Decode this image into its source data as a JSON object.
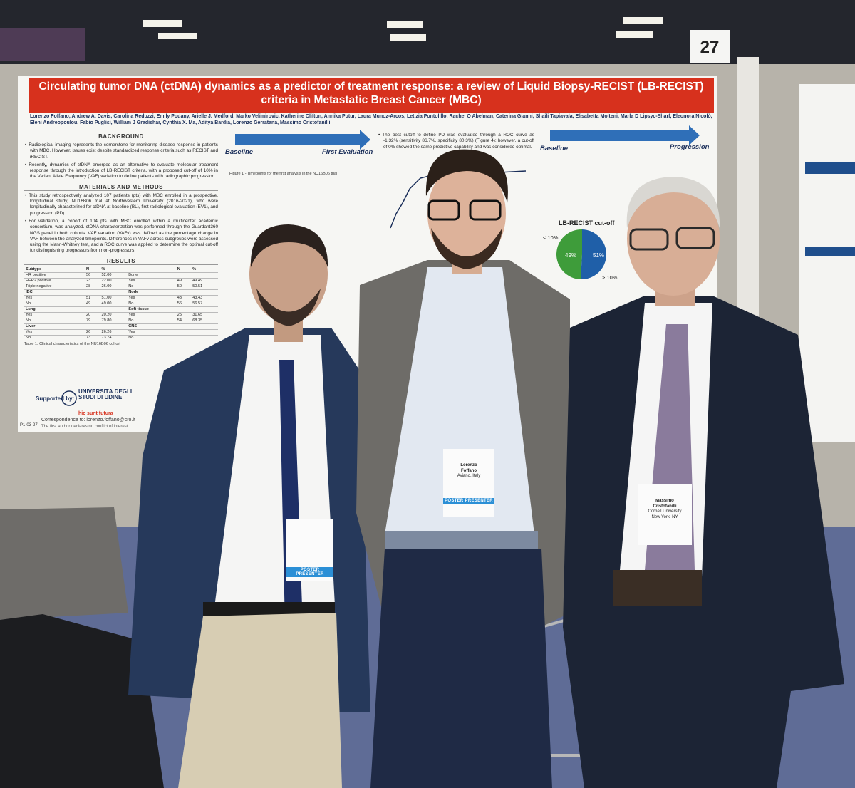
{
  "booth_number": "27",
  "poster": {
    "title": "Circulating tumor DNA (ctDNA) dynamics as a predictor of treatment response: a review of Liquid Biopsy-RECIST (LB-RECIST) criteria in Metastatic Breast Cancer (MBC)",
    "authors": "Lorenzo Foffano, Andrew A. Davis, Carolina Reduzzi, Emily Podany, Arielle J. Medford, Marko Velimirovic, Katherine Clifton, Annika Putur, Laura Munoz-Arcos, Letizia Pontolillo, Rachel O Abelman, Caterina Gianni, Shaili Tapiavala, Elisabetta Molteni, Marla D Lipsyc-Sharf, Eleonora Nicolò, Eleni Andreopoulou, Fabio Puglisi, William J Gradishar, Cynthia X. Ma, Aditya Bardia, Lorenzo Gerratana, Massimo Cristofanilli",
    "background": {
      "heading": "BACKGROUND",
      "bullets": [
        "Radiological imaging represents the cornerstone for monitoring disease response in patients with MBC. However, issues exist despite standardized response criteria such as RECIST and iRECIST.",
        "Recently, dynamics of ctDNA emerged as an alternative to evaluate molecular treatment response through the introduction of LB-RECIST criteria, with a proposed cut-off of 10% in the Variant Allele Frequency (VAF) variation to define patients with radiographic progression."
      ]
    },
    "methods": {
      "heading": "MATERIALS AND METHODS",
      "bullets": [
        "This study retrospectively analyzed 107 patients (pts) with MBC enrolled in a prospective, longitudinal study, NU16B06 trial at Northwestern University (2016-2021), who were longitudinally characterized for ctDNA at baseline (BL), first radiological evaluation (EV1), and progression (PD).",
        "For validation, a cohort of 104 pts with MBC enrolled within a multicenter academic consortium, was analyzed. ctDNA characterization was performed through the Guardant360 NGS panel in both cohorts. VAF variation (VAFv) was defined as the percentage change in VAF between the analyzed timepoints. Differences in VAFv across subgroups were assessed using the Mann-Whitney test, and a ROC curve was applied to determine the optimal cut-off for distinguishing progressors from non-progressors."
      ]
    },
    "results": {
      "heading": "RESULTS",
      "table": {
        "rows": [
          [
            "Subtype",
            "N",
            "%",
            null,
            "N",
            "%"
          ],
          [
            "HR positive",
            "56",
            "52.00",
            "Bone",
            null,
            null
          ],
          [
            "HER2 positive",
            "23",
            "22.00",
            "Yes",
            "49",
            "49.49"
          ],
          [
            "Triple negative",
            "28",
            "26.00",
            "No",
            "50",
            "50.51"
          ],
          [
            "IBC",
            null,
            null,
            "Node",
            null,
            null
          ],
          [
            "Yes",
            "51",
            "51.00",
            "Yes",
            "43",
            "43.43"
          ],
          [
            "No",
            "49",
            "49.00",
            "No",
            "56",
            "56.57"
          ],
          [
            "Lung",
            null,
            null,
            "Soft tissue",
            null,
            null
          ],
          [
            "Yes",
            "20",
            "20.20",
            "Yes",
            "25",
            "31.65"
          ],
          [
            "No",
            "79",
            "79.80",
            "No",
            "54",
            "68.35"
          ],
          [
            "Liver",
            null,
            null,
            "CNS",
            null,
            null
          ],
          [
            "Yes",
            "26",
            "26.26",
            "Yes",
            null,
            null
          ],
          [
            "No",
            "73",
            "73.74",
            "No",
            null,
            null
          ]
        ],
        "caption": "Table 1. Clinical characteristics of the NU16B06 cohort"
      }
    },
    "supported_by": "Supported by:",
    "university": "UNIVERSITÀ DEGLI STUDI DI UDINE",
    "motto": "hic sunt futura",
    "poster_code": "P1-03-27",
    "correspondence": "Correspondence to: lorenzo.foffano@cro.it",
    "disclosure": "The first author declares no conflict of interest",
    "figure1": {
      "start": "Baseline",
      "end": "First Evaluation",
      "caption": "Figure 1 - Timepoints for the first analysis in the NU16B06 trial"
    },
    "roc_text": "The best cutoff to define PD was evaluated through a ROC curve as -1.32% (sensitivity 86.7%, specificity 80.3%) (Figure 4); however, a cut-off of 0% showed the same predictive capability and was considered optimal.",
    "figure7": {
      "start": "Baseline",
      "end": "Progression"
    },
    "pie": {
      "title": "LB-RECIST cut-off",
      "low": "< 10%",
      "high": "> 10%",
      "left": "49%",
      "right": "51%"
    }
  },
  "badges": {
    "middle": {
      "first": "Lorenzo",
      "last": "Foffano",
      "place": "Aviano, Italy",
      "role": "POSTER PRESENTER"
    },
    "right": {
      "first": "Massimo",
      "last": "Cristofanilli",
      "org": "Cornell University",
      "place": "New York, NY"
    },
    "left": {
      "role": "POSTER PRESENTER"
    }
  }
}
